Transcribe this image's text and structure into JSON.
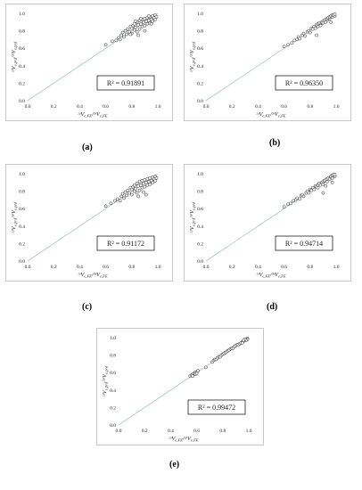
{
  "chart_data": [
    {
      "type": "scatter",
      "panel": "a",
      "r2": "R² = 0.91891",
      "xlabel": "²³V_e,FE/²⁸V_e,FE",
      "ylabel": "²³V_e,prd/²⁸V_e,prd",
      "xlim": [
        0.0,
        1.0
      ],
      "ylim": [
        0.0,
        1.0
      ],
      "x_ticks": [
        "0.0",
        "0.2",
        "0.4",
        "0.6",
        "0.8",
        "1.0"
      ],
      "y_ticks": [
        "0.0",
        "0.2",
        "0.4",
        "0.6",
        "0.8",
        "1.0"
      ],
      "reference_line": "y = x",
      "points": [
        [
          0.6,
          0.64
        ],
        [
          0.65,
          0.68
        ],
        [
          0.68,
          0.69
        ],
        [
          0.7,
          0.72
        ],
        [
          0.71,
          0.7
        ],
        [
          0.72,
          0.75
        ],
        [
          0.73,
          0.78
        ],
        [
          0.74,
          0.73
        ],
        [
          0.75,
          0.8
        ],
        [
          0.76,
          0.76
        ],
        [
          0.77,
          0.82
        ],
        [
          0.78,
          0.79
        ],
        [
          0.79,
          0.85
        ],
        [
          0.8,
          0.83
        ],
        [
          0.8,
          0.77
        ],
        [
          0.81,
          0.86
        ],
        [
          0.82,
          0.81
        ],
        [
          0.82,
          0.88
        ],
        [
          0.83,
          0.84
        ],
        [
          0.84,
          0.9
        ],
        [
          0.84,
          0.79
        ],
        [
          0.85,
          0.87
        ],
        [
          0.86,
          0.82
        ],
        [
          0.86,
          0.92
        ],
        [
          0.87,
          0.88
        ],
        [
          0.88,
          0.85
        ],
        [
          0.88,
          0.93
        ],
        [
          0.89,
          0.9
        ],
        [
          0.9,
          0.86
        ],
        [
          0.9,
          0.94
        ],
        [
          0.91,
          0.91
        ],
        [
          0.92,
          0.88
        ],
        [
          0.92,
          0.95
        ],
        [
          0.93,
          0.92
        ],
        [
          0.94,
          0.89
        ],
        [
          0.94,
          0.96
        ],
        [
          0.95,
          0.93
        ],
        [
          0.96,
          0.97
        ],
        [
          0.96,
          0.91
        ],
        [
          0.97,
          0.95
        ],
        [
          0.98,
          0.98
        ],
        [
          0.98,
          0.93
        ],
        [
          0.99,
          0.96
        ],
        [
          0.85,
          0.75
        ],
        [
          0.9,
          0.8
        ],
        [
          0.79,
          0.76
        ],
        [
          0.83,
          0.91
        ],
        [
          0.87,
          0.94
        ],
        [
          0.93,
          0.97
        ],
        [
          0.95,
          0.88
        ]
      ]
    },
    {
      "type": "scatter",
      "panel": "b",
      "r2": "R² = 0.96350",
      "xlabel": "²³V_e,FE/²⁸V_e,FE",
      "ylabel": "²³V_e,prd/²⁸V_e,prd",
      "xlim": [
        0.0,
        1.0
      ],
      "ylim": [
        0.0,
        1.0
      ],
      "x_ticks": [
        "0.0",
        "0.2",
        "0.4",
        "0.6",
        "0.8",
        "1.0"
      ],
      "y_ticks": [
        "0.0",
        "0.2",
        "0.4",
        "0.6",
        "0.8",
        "1.0"
      ],
      "reference_line": "y = x",
      "points": [
        [
          0.6,
          0.62
        ],
        [
          0.63,
          0.64
        ],
        [
          0.66,
          0.66
        ],
        [
          0.68,
          0.69
        ],
        [
          0.7,
          0.7
        ],
        [
          0.71,
          0.73
        ],
        [
          0.72,
          0.71
        ],
        [
          0.74,
          0.75
        ],
        [
          0.75,
          0.77
        ],
        [
          0.76,
          0.74
        ],
        [
          0.78,
          0.79
        ],
        [
          0.79,
          0.8
        ],
        [
          0.8,
          0.78
        ],
        [
          0.81,
          0.83
        ],
        [
          0.82,
          0.82
        ],
        [
          0.83,
          0.85
        ],
        [
          0.84,
          0.83
        ],
        [
          0.85,
          0.87
        ],
        [
          0.86,
          0.85
        ],
        [
          0.86,
          0.88
        ],
        [
          0.87,
          0.89
        ],
        [
          0.88,
          0.87
        ],
        [
          0.89,
          0.9
        ],
        [
          0.9,
          0.91
        ],
        [
          0.9,
          0.89
        ],
        [
          0.91,
          0.92
        ],
        [
          0.92,
          0.93
        ],
        [
          0.93,
          0.92
        ],
        [
          0.93,
          0.94
        ],
        [
          0.94,
          0.95
        ],
        [
          0.95,
          0.94
        ],
        [
          0.95,
          0.96
        ],
        [
          0.96,
          0.97
        ],
        [
          0.97,
          0.96
        ],
        [
          0.97,
          0.98
        ],
        [
          0.98,
          0.98
        ],
        [
          0.99,
          0.97
        ],
        [
          0.99,
          0.99
        ],
        [
          0.85,
          0.75
        ],
        [
          0.96,
          0.9
        ],
        [
          0.92,
          0.9
        ],
        [
          0.88,
          0.86
        ]
      ]
    },
    {
      "type": "scatter",
      "panel": "c",
      "r2": "R² = 0.91172",
      "xlabel": "²³V_e,FE/²⁸V_e,FE",
      "ylabel": "²³V_e,prd/²⁸V_e,prd",
      "xlim": [
        0.0,
        1.0
      ],
      "ylim": [
        0.0,
        1.0
      ],
      "x_ticks": [
        "0.0",
        "0.2",
        "0.4",
        "0.6",
        "0.8",
        "1.0"
      ],
      "y_ticks": [
        "0.0",
        "0.2",
        "0.4",
        "0.6",
        "0.8",
        "1.0"
      ],
      "reference_line": "y = x",
      "points": [
        [
          0.6,
          0.63
        ],
        [
          0.64,
          0.66
        ],
        [
          0.67,
          0.69
        ],
        [
          0.69,
          0.71
        ],
        [
          0.71,
          0.69
        ],
        [
          0.72,
          0.74
        ],
        [
          0.73,
          0.77
        ],
        [
          0.74,
          0.72
        ],
        [
          0.75,
          0.79
        ],
        [
          0.76,
          0.75
        ],
        [
          0.77,
          0.81
        ],
        [
          0.78,
          0.78
        ],
        [
          0.79,
          0.84
        ],
        [
          0.8,
          0.82
        ],
        [
          0.8,
          0.76
        ],
        [
          0.81,
          0.85
        ],
        [
          0.82,
          0.8
        ],
        [
          0.82,
          0.87
        ],
        [
          0.83,
          0.83
        ],
        [
          0.84,
          0.89
        ],
        [
          0.84,
          0.78
        ],
        [
          0.85,
          0.86
        ],
        [
          0.86,
          0.81
        ],
        [
          0.86,
          0.91
        ],
        [
          0.87,
          0.87
        ],
        [
          0.88,
          0.84
        ],
        [
          0.88,
          0.92
        ],
        [
          0.89,
          0.89
        ],
        [
          0.9,
          0.85
        ],
        [
          0.9,
          0.93
        ],
        [
          0.91,
          0.9
        ],
        [
          0.92,
          0.87
        ],
        [
          0.92,
          0.94
        ],
        [
          0.93,
          0.91
        ],
        [
          0.94,
          0.88
        ],
        [
          0.94,
          0.95
        ],
        [
          0.95,
          0.92
        ],
        [
          0.96,
          0.96
        ],
        [
          0.96,
          0.9
        ],
        [
          0.97,
          0.94
        ],
        [
          0.98,
          0.97
        ],
        [
          0.98,
          0.92
        ],
        [
          0.99,
          0.95
        ],
        [
          0.85,
          0.74
        ],
        [
          0.89,
          0.79
        ],
        [
          0.91,
          0.76
        ]
      ]
    },
    {
      "type": "scatter",
      "panel": "d",
      "r2": "R² = 0.94714",
      "xlabel": "²³V_e,FE/²⁸V_e,FE",
      "ylabel": "²³V_e,prd/²⁸V_e,prd",
      "xlim": [
        0.0,
        1.0
      ],
      "ylim": [
        0.0,
        1.0
      ],
      "x_ticks": [
        "0.0",
        "0.2",
        "0.4",
        "0.6",
        "0.8",
        "1.0"
      ],
      "y_ticks": [
        "0.0",
        "0.2",
        "0.4",
        "0.6",
        "0.8",
        "1.0"
      ],
      "reference_line": "y = x",
      "points": [
        [
          0.6,
          0.62
        ],
        [
          0.63,
          0.65
        ],
        [
          0.65,
          0.66
        ],
        [
          0.67,
          0.69
        ],
        [
          0.69,
          0.7
        ],
        [
          0.7,
          0.72
        ],
        [
          0.72,
          0.71
        ],
        [
          0.73,
          0.75
        ],
        [
          0.74,
          0.76
        ],
        [
          0.75,
          0.74
        ],
        [
          0.77,
          0.78
        ],
        [
          0.78,
          0.8
        ],
        [
          0.79,
          0.78
        ],
        [
          0.8,
          0.82
        ],
        [
          0.81,
          0.81
        ],
        [
          0.82,
          0.84
        ],
        [
          0.83,
          0.82
        ],
        [
          0.84,
          0.86
        ],
        [
          0.85,
          0.85
        ],
        [
          0.86,
          0.87
        ],
        [
          0.86,
          0.84
        ],
        [
          0.87,
          0.89
        ],
        [
          0.88,
          0.87
        ],
        [
          0.89,
          0.9
        ],
        [
          0.9,
          0.91
        ],
        [
          0.9,
          0.88
        ],
        [
          0.91,
          0.92
        ],
        [
          0.92,
          0.93
        ],
        [
          0.93,
          0.91
        ],
        [
          0.93,
          0.94
        ],
        [
          0.94,
          0.95
        ],
        [
          0.95,
          0.94
        ],
        [
          0.96,
          0.96
        ],
        [
          0.96,
          0.97
        ],
        [
          0.97,
          0.95
        ],
        [
          0.97,
          0.98
        ],
        [
          0.98,
          0.99
        ],
        [
          0.99,
          0.97
        ],
        [
          0.99,
          0.99
        ],
        [
          0.9,
          0.78
        ],
        [
          0.97,
          0.9
        ],
        [
          0.92,
          0.86
        ]
      ]
    },
    {
      "type": "scatter",
      "panel": "e",
      "r2": "R² = 0.99472",
      "xlabel": "²³V_e,FE/²⁸V_e,FE",
      "ylabel": "²³V_e,prd/²⁸V_e,prd",
      "xlim": [
        0.0,
        1.0
      ],
      "ylim": [
        0.0,
        1.0
      ],
      "x_ticks": [
        "0.0",
        "0.2",
        "0.4",
        "0.6",
        "0.8",
        "1.0"
      ],
      "y_ticks": [
        "0.0",
        "0.2",
        "0.4",
        "0.6",
        "0.8",
        "1.0"
      ],
      "reference_line": "y = x",
      "points": [
        [
          0.55,
          0.56
        ],
        [
          0.56,
          0.57
        ],
        [
          0.57,
          0.58
        ],
        [
          0.58,
          0.59
        ],
        [
          0.59,
          0.6
        ],
        [
          0.6,
          0.61
        ],
        [
          0.61,
          0.62
        ],
        [
          0.57,
          0.56
        ],
        [
          0.59,
          0.58
        ],
        [
          0.6,
          0.59
        ],
        [
          0.67,
          0.66
        ],
        [
          0.72,
          0.72
        ],
        [
          0.73,
          0.74
        ],
        [
          0.74,
          0.75
        ],
        [
          0.75,
          0.75
        ],
        [
          0.76,
          0.77
        ],
        [
          0.77,
          0.78
        ],
        [
          0.78,
          0.78
        ],
        [
          0.79,
          0.8
        ],
        [
          0.8,
          0.81
        ],
        [
          0.81,
          0.82
        ],
        [
          0.82,
          0.83
        ],
        [
          0.83,
          0.84
        ],
        [
          0.84,
          0.85
        ],
        [
          0.85,
          0.86
        ],
        [
          0.86,
          0.87
        ],
        [
          0.87,
          0.88
        ],
        [
          0.88,
          0.88
        ],
        [
          0.89,
          0.9
        ],
        [
          0.9,
          0.91
        ],
        [
          0.91,
          0.92
        ],
        [
          0.92,
          0.92
        ],
        [
          0.93,
          0.93
        ],
        [
          0.94,
          0.94
        ],
        [
          0.95,
          0.95
        ],
        [
          0.96,
          0.96
        ],
        [
          0.97,
          0.97
        ],
        [
          0.98,
          0.98
        ],
        [
          0.99,
          0.99
        ],
        [
          0.99,
          0.98
        ],
        [
          0.98,
          0.97
        ],
        [
          0.97,
          0.98
        ],
        [
          0.96,
          0.97
        ],
        [
          0.95,
          0.94
        ]
      ]
    }
  ],
  "labels": {
    "a": "(a)",
    "b": "(b)",
    "c": "(c)",
    "d": "(d)",
    "e": "(e)"
  }
}
